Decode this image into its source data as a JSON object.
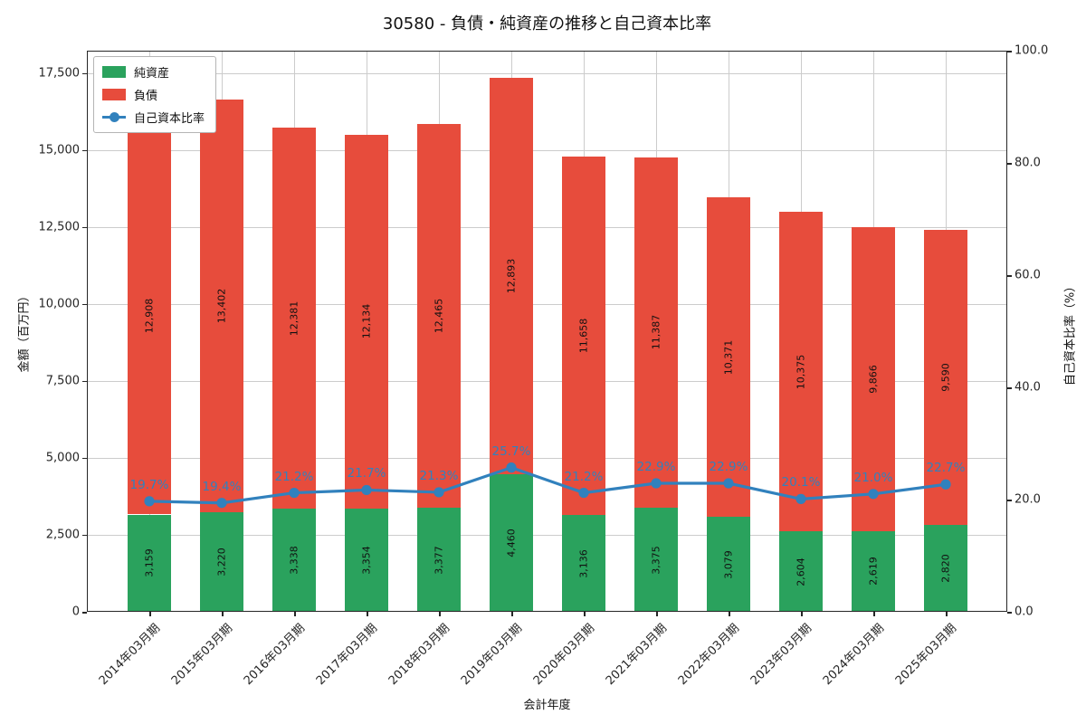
{
  "title": "30580 - 負債・純資産の推移と自己資本比率",
  "chart_data": {
    "type": "bar",
    "subtype": "stacked-bars-with-line-overlay",
    "title": "30580 - 負債・純資産の推移と自己資本比率",
    "xlabel": "会計年度",
    "ylabel_left": "金額（百万円）",
    "ylabel_right": "自己資本比率（%）",
    "categories": [
      "2014年03月期",
      "2015年03月期",
      "2016年03月期",
      "2017年03月期",
      "2018年03月期",
      "2019年03月期",
      "2020年03月期",
      "2021年03月期",
      "2022年03月期",
      "2023年03月期",
      "2024年03月期",
      "2025年03月期"
    ],
    "series": [
      {
        "name": "純資産",
        "type": "bar",
        "stack_order": 0,
        "color": "#2aa25d",
        "values": [
          3159,
          3220,
          3338,
          3354,
          3377,
          4460,
          3136,
          3375,
          3079,
          2604,
          2619,
          2820
        ]
      },
      {
        "name": "負債",
        "type": "bar",
        "stack_order": 1,
        "color": "#e74c3c",
        "values": [
          12908,
          13402,
          12381,
          12134,
          12465,
          12893,
          11658,
          11387,
          10371,
          10375,
          9866,
          9590
        ]
      },
      {
        "name": "自己資本比率",
        "type": "line",
        "axis": "right",
        "color": "#3181bd",
        "values": [
          19.7,
          19.4,
          21.2,
          21.7,
          21.3,
          25.7,
          21.2,
          22.9,
          22.9,
          20.1,
          21.0,
          22.7
        ]
      }
    ],
    "ylim_left": [
      0,
      18220
    ],
    "yticks_left": [
      0,
      2500,
      5000,
      7500,
      10000,
      12500,
      15000,
      17500
    ],
    "ylim_right": [
      0,
      100
    ],
    "yticks_right": [
      0,
      20,
      40,
      60,
      80,
      100
    ],
    "grid": true,
    "grid_color": "#cccccc",
    "legend_position": "upper-left",
    "legend": [
      "純資産",
      "負債",
      "自己資本比率"
    ]
  }
}
